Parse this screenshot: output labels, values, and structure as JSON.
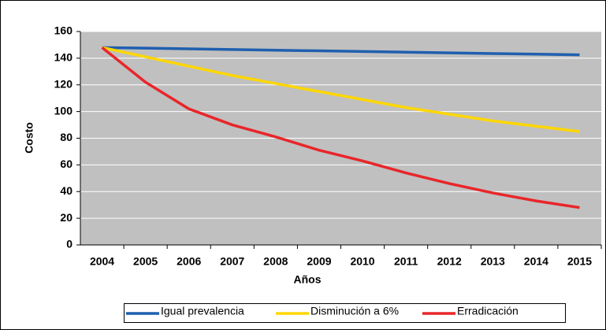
{
  "chart_data": {
    "type": "line",
    "x_label": "Años",
    "y_label": "Costo",
    "categories": [
      "2004",
      "2005",
      "2006",
      "2007",
      "2008",
      "2009",
      "2010",
      "2011",
      "2012",
      "2013",
      "2014",
      "2015"
    ],
    "series": [
      {
        "name": "Igual prevalencia",
        "color": "#1f5fae",
        "values": [
          148,
          147.5,
          147,
          146.5,
          146,
          145.5,
          145,
          144.5,
          144,
          143.5,
          143,
          142.5
        ]
      },
      {
        "name": "Disminución a 6%",
        "color": "#ffd700",
        "values": [
          148,
          141,
          134,
          127,
          121,
          115,
          109,
          103,
          98,
          93,
          89,
          85
        ]
      },
      {
        "name": "Erradicación",
        "color": "#e8262a",
        "values": [
          148,
          122,
          102,
          90,
          81,
          71,
          63,
          54,
          46,
          39,
          33,
          28
        ]
      }
    ],
    "ylim": [
      0,
      160
    ],
    "yticks": [
      0,
      20,
      40,
      60,
      80,
      100,
      120,
      140,
      160
    ],
    "grid": true,
    "legend": "bottom"
  }
}
